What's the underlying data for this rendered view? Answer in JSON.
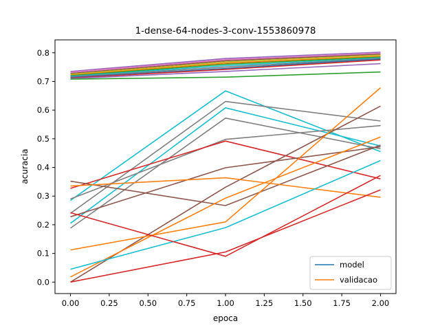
{
  "chart_data": {
    "type": "line",
    "title": "1-dense-64-nodes-3-conv-1553860978",
    "xlabel": "epoca",
    "ylabel": "acuracia",
    "xlim": [
      -0.1,
      2.1
    ],
    "ylim": [
      -0.04,
      0.845
    ],
    "x_ticks": [
      0.0,
      0.25,
      0.5,
      0.75,
      1.0,
      1.25,
      1.5,
      1.75,
      2.0
    ],
    "x_tick_labels": [
      "0.00",
      "0.25",
      "0.50",
      "0.75",
      "1.00",
      "1.25",
      "1.50",
      "1.75",
      "2.00"
    ],
    "y_ticks": [
      0.0,
      0.1,
      0.2,
      0.3,
      0.4,
      0.5,
      0.6,
      0.7,
      0.8
    ],
    "y_tick_labels": [
      "0.0",
      "0.1",
      "0.2",
      "0.3",
      "0.4",
      "0.5",
      "0.6",
      "0.7",
      "0.8"
    ],
    "grid": false,
    "legend_position": "lower-right",
    "legend": [
      {
        "label": "model",
        "color": "#1f77b4"
      },
      {
        "label": "validacao",
        "color": "#ff7f0e"
      }
    ],
    "x": [
      0,
      1,
      2
    ],
    "series": [
      {
        "color": "#9467bd",
        "values": [
          0.735,
          0.78,
          0.802
        ]
      },
      {
        "color": "#e377c2",
        "values": [
          0.732,
          0.776,
          0.798
        ]
      },
      {
        "color": "#8c564b",
        "values": [
          0.728,
          0.772,
          0.795
        ]
      },
      {
        "color": "#bcbd22",
        "values": [
          0.725,
          0.768,
          0.792
        ]
      },
      {
        "color": "#ff7f0e",
        "values": [
          0.722,
          0.764,
          0.788
        ]
      },
      {
        "color": "#2ca02c",
        "values": [
          0.72,
          0.76,
          0.785
        ]
      },
      {
        "color": "#17becf",
        "values": [
          0.718,
          0.755,
          0.782
        ]
      },
      {
        "color": "#7f7f7f",
        "values": [
          0.716,
          0.75,
          0.78
        ]
      },
      {
        "color": "#1f77b4",
        "values": [
          0.714,
          0.745,
          0.778
        ]
      },
      {
        "color": "#d62728",
        "values": [
          0.712,
          0.742,
          0.775
        ]
      },
      {
        "color": "#9467bd",
        "values": [
          0.71,
          0.735,
          0.762
        ]
      },
      {
        "color": "#2ca02c",
        "values": [
          0.708,
          0.715,
          0.733
        ]
      },
      {
        "color": "#17becf",
        "values": [
          0.285,
          0.667,
          0.455
        ]
      },
      {
        "color": "#17becf",
        "values": [
          0.205,
          0.608,
          0.475
        ]
      },
      {
        "color": "#7f7f7f",
        "values": [
          0.24,
          0.63,
          0.562
        ]
      },
      {
        "color": "#7f7f7f",
        "values": [
          0.188,
          0.572,
          0.465
        ]
      },
      {
        "color": "#7f7f7f",
        "values": [
          0.29,
          0.498,
          0.546
        ]
      },
      {
        "color": "#d62728",
        "values": [
          0.327,
          0.492,
          0.36
        ]
      },
      {
        "color": "#8c564b",
        "values": [
          0.228,
          0.399,
          0.472
        ]
      },
      {
        "color": "#8c564b",
        "values": [
          0.352,
          0.267,
          0.478
        ]
      },
      {
        "color": "#8c564b",
        "values": [
          0.0,
          0.331,
          0.614
        ]
      },
      {
        "color": "#ff7f0e",
        "values": [
          0.335,
          0.364,
          0.296
        ]
      },
      {
        "color": "#ff7f0e",
        "values": [
          0.112,
          0.21,
          0.678
        ]
      },
      {
        "color": "#ff7f0e",
        "values": [
          0.018,
          0.293,
          0.506
        ]
      },
      {
        "color": "#17becf",
        "values": [
          0.045,
          0.19,
          0.424
        ]
      },
      {
        "color": "#d62728",
        "values": [
          0.242,
          0.09,
          0.372
        ]
      },
      {
        "color": "#d62728",
        "values": [
          0.0,
          0.105,
          0.322
        ]
      }
    ]
  }
}
